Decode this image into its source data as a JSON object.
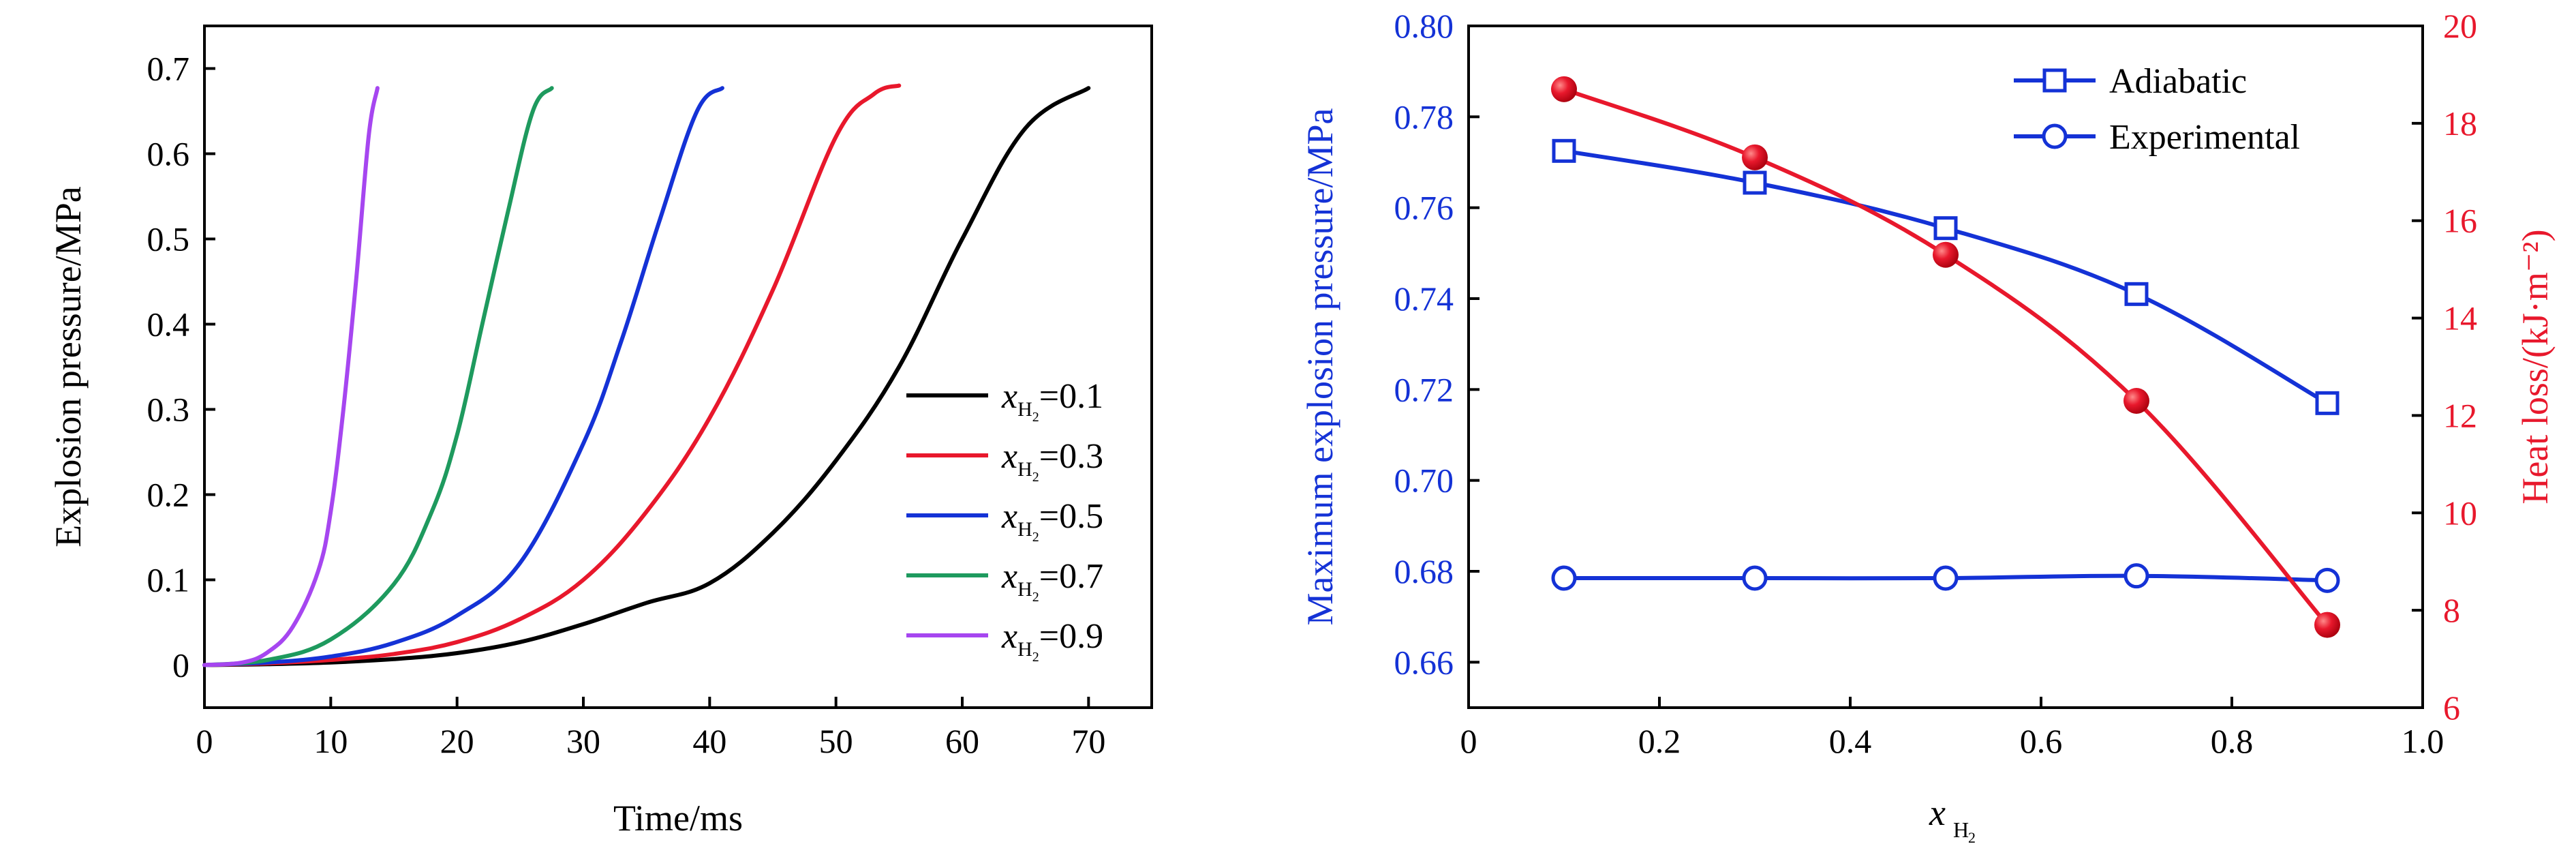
{
  "chart_data": [
    {
      "type": "line",
      "title": "",
      "xlabel": "Time/ms",
      "ylabel": "Explosion pressure/MPa",
      "xlim": [
        0,
        75
      ],
      "ylim": [
        -0.05,
        0.75
      ],
      "xticks": [
        0,
        10,
        20,
        30,
        40,
        50,
        60,
        70
      ],
      "yticks": [
        0,
        0.1,
        0.2,
        0.3,
        0.4,
        0.5,
        0.6,
        0.7
      ],
      "xtick_labels": [
        "0",
        "10",
        "20",
        "30",
        "40",
        "50",
        "60",
        "70"
      ],
      "ytick_labels": [
        "0",
        "0.1",
        "0.2",
        "0.3",
        "0.4",
        "0.5",
        "0.6",
        "0.7"
      ],
      "grid": false,
      "legend_position": "center-right",
      "series": [
        {
          "name": "x_H2=0.1",
          "color": "#000000",
          "x": [
            0,
            5,
            10,
            15,
            20,
            25,
            30,
            35,
            40,
            45,
            50,
            55,
            60,
            65,
            70
          ],
          "y": [
            0,
            0.001,
            0.003,
            0.007,
            0.014,
            0.027,
            0.048,
            0.073,
            0.096,
            0.155,
            0.24,
            0.35,
            0.5,
            0.63,
            0.677
          ]
        },
        {
          "name": "x_H2=0.3",
          "color": "#e8182c",
          "x": [
            0,
            5,
            10,
            15,
            20,
            25,
            30,
            35,
            40,
            45,
            50,
            53,
            55
          ],
          "y": [
            0,
            0.002,
            0.006,
            0.013,
            0.027,
            0.054,
            0.1,
            0.18,
            0.29,
            0.44,
            0.62,
            0.67,
            0.68
          ]
        },
        {
          "name": "x_H2=0.5",
          "color": "#1432d6",
          "x": [
            0,
            5,
            10,
            15,
            20,
            25,
            30,
            33,
            36,
            39,
            41
          ],
          "y": [
            0,
            0.003,
            0.01,
            0.026,
            0.058,
            0.12,
            0.26,
            0.38,
            0.52,
            0.65,
            0.677
          ]
        },
        {
          "name": "x_H2=0.7",
          "color": "#1e9a5e",
          "x": [
            0,
            5,
            10,
            15,
            18,
            20,
            22,
            24,
            26,
            27.5
          ],
          "y": [
            0,
            0.006,
            0.03,
            0.095,
            0.18,
            0.27,
            0.4,
            0.53,
            0.65,
            0.677
          ]
        },
        {
          "name": "x_H2=0.9",
          "color": "#a646f0",
          "x": [
            0,
            3,
            5,
            7,
            9,
            10,
            11,
            12,
            13,
            13.7
          ],
          "y": [
            0,
            0.003,
            0.015,
            0.045,
            0.11,
            0.18,
            0.3,
            0.45,
            0.62,
            0.677
          ]
        }
      ]
    },
    {
      "type": "line",
      "title": "",
      "xlabel": "x_H2",
      "ylabel": "Maximum explosion pressure/MPa",
      "y2label": "Heat loss/(kJ·m⁻²)",
      "xlim": [
        0,
        1.0
      ],
      "ylim": [
        0.65,
        0.8
      ],
      "y2lim": [
        6,
        20
      ],
      "xticks": [
        0,
        0.2,
        0.4,
        0.6,
        0.8,
        1.0
      ],
      "xtick_labels": [
        "0",
        "0.2",
        "0.4",
        "0.6",
        "0.8",
        "1.0"
      ],
      "yticks": [
        0.66,
        0.68,
        0.7,
        0.72,
        0.74,
        0.76,
        0.78,
        0.8
      ],
      "ytick_labels": [
        "0.66",
        "0.68",
        "0.70",
        "0.72",
        "0.74",
        "0.76",
        "0.78",
        "0.80"
      ],
      "y2ticks": [
        6,
        8,
        10,
        12,
        14,
        16,
        18,
        20
      ],
      "y2tick_labels": [
        "6",
        "8",
        "10",
        "12",
        "14",
        "16",
        "18",
        "20"
      ],
      "grid": false,
      "legend_position": "top-right",
      "legend": [
        "Adiabatic",
        "Experimental"
      ],
      "series": [
        {
          "name": "Adiabatic",
          "color": "#1432d6",
          "marker": "square",
          "axis": "left",
          "x": [
            0.1,
            0.3,
            0.5,
            0.7,
            0.9
          ],
          "y": [
            0.7725,
            0.7655,
            0.7555,
            0.741,
            0.717
          ]
        },
        {
          "name": "Experimental",
          "color": "#1432d6",
          "marker": "circle",
          "axis": "left",
          "x": [
            0.1,
            0.3,
            0.5,
            0.7,
            0.9
          ],
          "y": [
            0.6785,
            0.6785,
            0.6785,
            0.679,
            0.678
          ]
        },
        {
          "color": "#e8182c",
          "marker": "filled-circle",
          "axis": "right",
          "x": [
            0.1,
            0.3,
            0.5,
            0.7,
            0.9
          ],
          "y": [
            18.7,
            17.3,
            15.3,
            12.3,
            7.7
          ]
        }
      ]
    }
  ]
}
